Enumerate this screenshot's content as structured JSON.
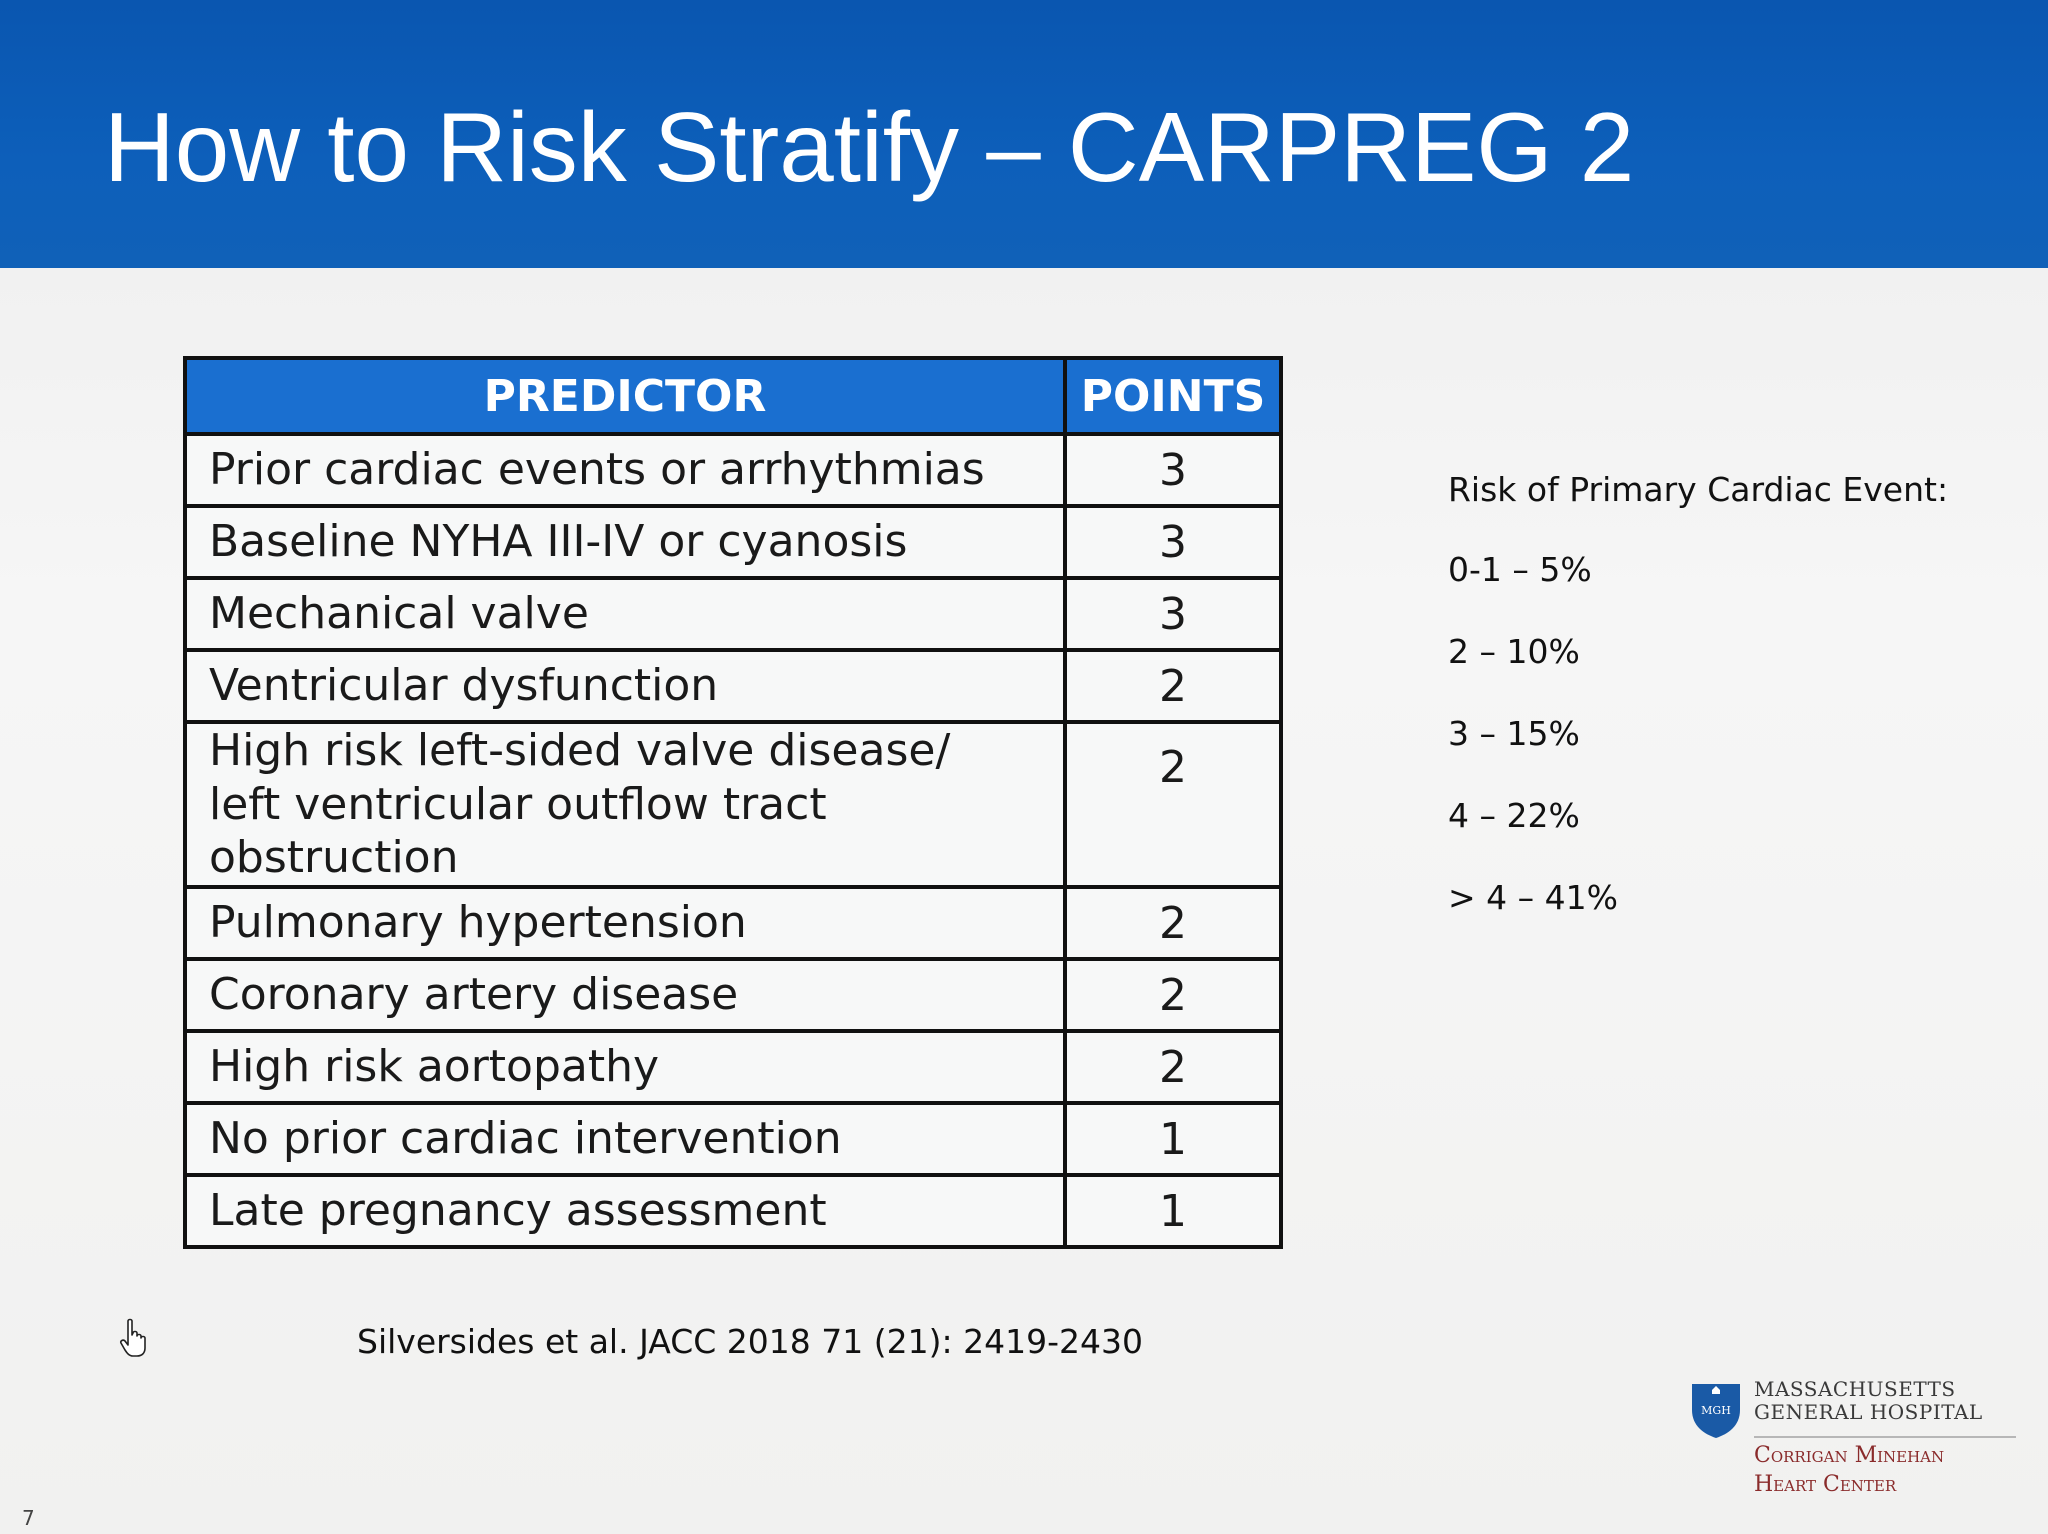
{
  "title": "How to Risk Stratify – CARPREG 2",
  "table": {
    "headers": {
      "predictor": "PREDICTOR",
      "points": "POINTS"
    },
    "rows": [
      {
        "predictor": "Prior cardiac events or arrhythmias",
        "points": "3"
      },
      {
        "predictor": "Baseline NYHA III-IV or cyanosis",
        "points": "3"
      },
      {
        "predictor": "Mechanical valve",
        "points": "3"
      },
      {
        "predictor": "Ventricular dysfunction",
        "points": "2"
      },
      {
        "predictor": "High risk left-sided valve disease/\nleft ventricular outflow tract obstruction",
        "points": "2"
      },
      {
        "predictor": "Pulmonary hypertension",
        "points": "2"
      },
      {
        "predictor": "Coronary artery disease",
        "points": "2"
      },
      {
        "predictor": "High risk aortopathy",
        "points": "2"
      },
      {
        "predictor": "No prior cardiac intervention",
        "points": "1"
      },
      {
        "predictor": "Late pregnancy assessment",
        "points": "1"
      }
    ]
  },
  "risk": {
    "heading": "Risk of Primary Cardiac Event:",
    "levels": [
      "0-1 – 5%",
      "2 – 10%",
      "3 – 15%",
      "4 – 22%",
      "> 4 – 41%"
    ]
  },
  "citation": "Silversides et al.  JACC 2018 71 (21): 2419-2430",
  "slide_number": "7",
  "logo": {
    "shield_text": "MGH",
    "hospital": "MASSACHUSETTS\nGENERAL HOSPITAL",
    "center": "Corrigan Minehan\nHeart Center"
  },
  "colors": {
    "header_blue": "#0d5fba",
    "table_header_blue": "#1a6fd0",
    "logo_red": "#8a2b2b"
  }
}
